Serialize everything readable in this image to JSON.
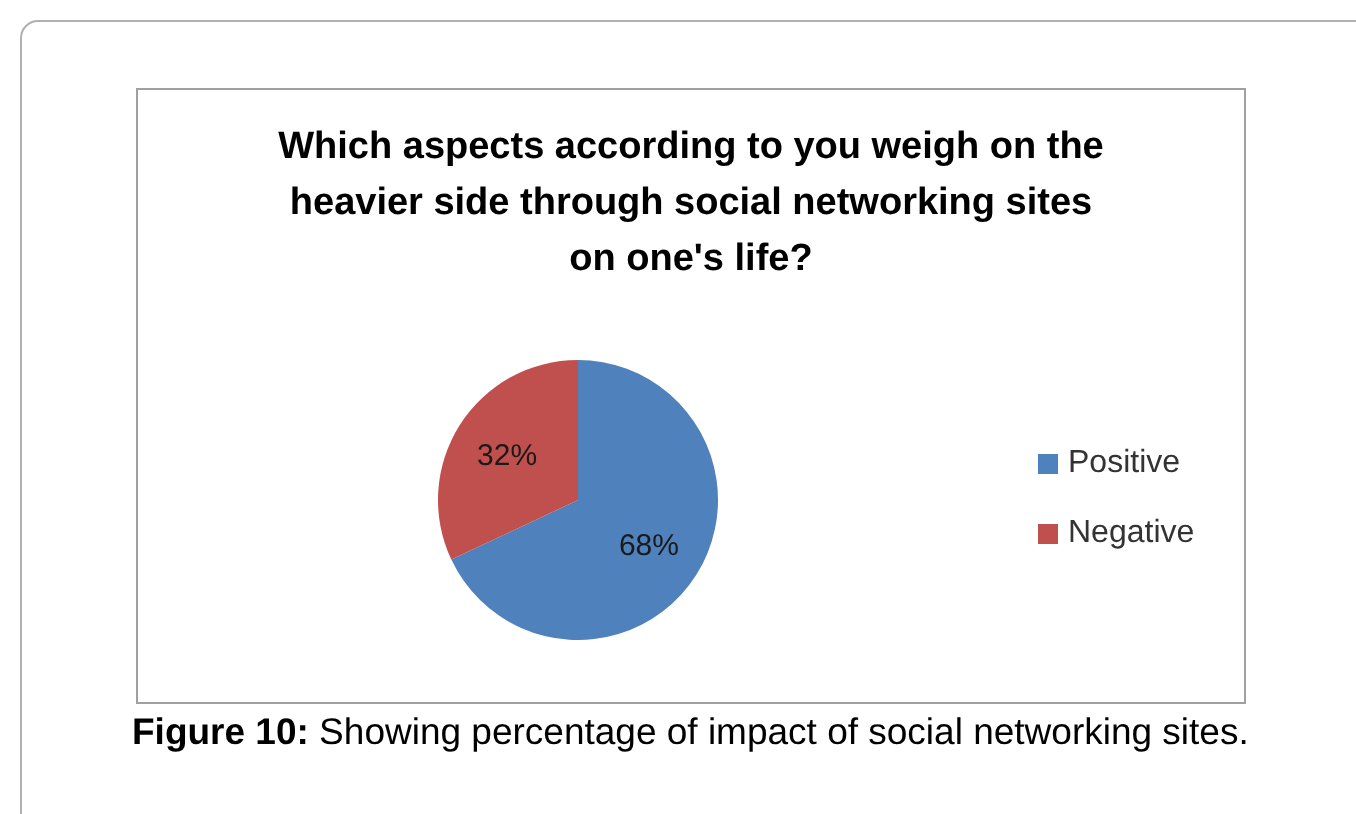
{
  "chart_data": {
    "type": "pie",
    "title": "Which aspects according to you weigh on the heavier side through social networking sites on one's life?",
    "categories": [
      "Positive",
      "Negative"
    ],
    "values": [
      68,
      32
    ],
    "colors": [
      "#4f81bd",
      "#c0504d"
    ],
    "value_labels": [
      "68%",
      "32%"
    ],
    "legend": "right",
    "annotations": [
      "Figure 10: Showing percentage of impact of social networking sites."
    ]
  }
}
